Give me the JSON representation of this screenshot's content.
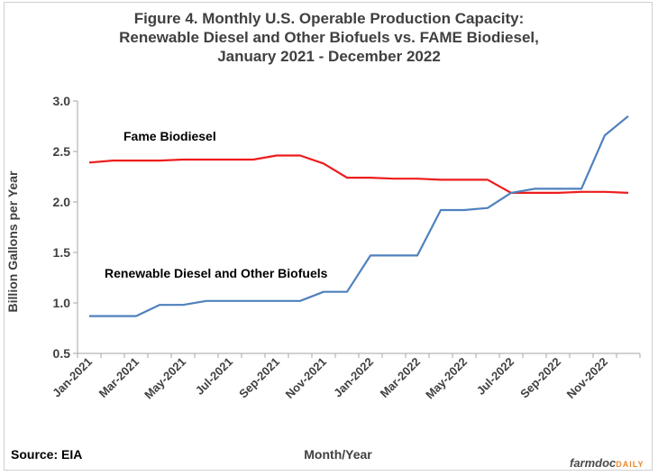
{
  "title_lines": [
    "Figure  4. Monthly  U.S. Operable  Production  Capacity:",
    "Renewable Diesel and Other Biofuels vs. FAME Biodiesel,",
    "January  2021 - December  2022"
  ],
  "source": "Source: EIA",
  "brand": {
    "main": "farmdoc",
    "sub": "DAILY"
  },
  "chart_data": {
    "type": "line",
    "xlabel": "Month/Year",
    "ylabel": "Billion Gallons per Year",
    "ylim": [
      0.5,
      3.0
    ],
    "yticks": [
      "0.5",
      "1.0",
      "1.5",
      "2.0",
      "2.5",
      "3.0"
    ],
    "grid": false,
    "x": [
      "Jan-2021",
      "Feb-2021",
      "Mar-2021",
      "Apr-2021",
      "May-2021",
      "Jun-2021",
      "Jul-2021",
      "Aug-2021",
      "Sep-2021",
      "Oct-2021",
      "Nov-2021",
      "Dec-2021",
      "Jan-2022",
      "Feb-2022",
      "Mar-2022",
      "Apr-2022",
      "May-2022",
      "Jun-2022",
      "Jul-2022",
      "Aug-2022",
      "Sep-2022",
      "Oct-2022",
      "Nov-2022",
      "Dec-2022"
    ],
    "xtick_labels": [
      "Jan-2021",
      "Mar-2021",
      "May-2021",
      "Jul-2021",
      "Sep-2021",
      "Nov-2021",
      "Jan-2022",
      "Mar-2022",
      "May-2022",
      "Jul-2022",
      "Sep-2022",
      "Nov-2022"
    ],
    "series": [
      {
        "name": "Fame Biodiesel",
        "color": "#ee1c1c",
        "values": [
          2.39,
          2.41,
          2.41,
          2.41,
          2.42,
          2.42,
          2.42,
          2.42,
          2.46,
          2.46,
          2.38,
          2.24,
          2.24,
          2.23,
          2.23,
          2.22,
          2.22,
          2.22,
          2.09,
          2.09,
          2.09,
          2.1,
          2.1,
          2.09
        ]
      },
      {
        "name": "Renewable Diesel and Other Biofuels",
        "color": "#4f81bd",
        "values": [
          0.87,
          0.87,
          0.87,
          0.98,
          0.98,
          1.02,
          1.02,
          1.02,
          1.02,
          1.02,
          1.11,
          1.11,
          1.47,
          1.47,
          1.47,
          1.92,
          1.92,
          1.94,
          2.09,
          2.13,
          2.13,
          2.13,
          2.66,
          2.85
        ]
      }
    ]
  }
}
